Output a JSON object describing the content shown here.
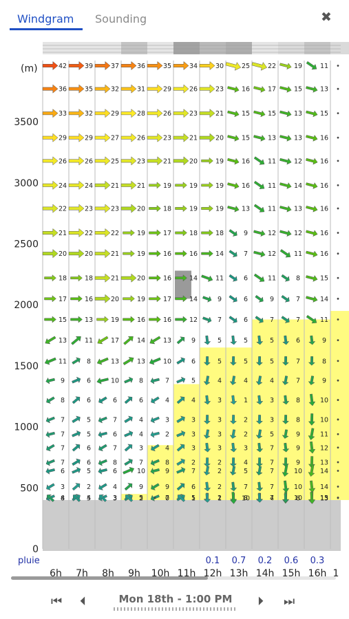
{
  "tabs": {
    "windgram": "Windgram",
    "sounding": "Sounding"
  },
  "close_icon": "close-icon",
  "nav": {
    "date": "Mon 18th - 1:00 PM",
    "first_icon": "skip-first-icon",
    "prev_icon": "step-back-icon",
    "next_icon": "step-forward-icon",
    "last_icon": "skip-last-icon"
  },
  "chart_data": {
    "type": "windgram",
    "y_unit_label": "(m)",
    "y_ticks": [
      0,
      500,
      1000,
      1500,
      2000,
      2500,
      3000,
      3500
    ],
    "ylim": [
      0,
      3960
    ],
    "hours": [
      "6h",
      "7h",
      "8h",
      "9h",
      "10h",
      "11h",
      "12h",
      "13h",
      "14h",
      "15h",
      "16h",
      "1"
    ],
    "rain_label": "pluie",
    "rain": [
      "",
      "",
      "",
      "",
      "",
      "",
      "0.1",
      "0.7",
      "0.2",
      "0.6",
      "0.3",
      ""
    ],
    "ground_altitude": 400,
    "thermal_tops": [
      null,
      null,
      null,
      450,
      850,
      1350,
      1650,
      1650,
      1880,
      1880,
      1880,
      1950
    ],
    "cloud_cells": [
      {
        "hour": "11h",
        "from_alt": 2050,
        "to_alt": 2280
      }
    ],
    "cloud_bar": [
      0.1,
      0.1,
      0.1,
      0.4,
      0.1,
      0.7,
      0.5,
      0.6,
      0.1,
      0.2,
      0.4,
      0.2
    ],
    "levels": [
      3960,
      3770,
      3570,
      3370,
      3180,
      2980,
      2790,
      2590,
      2420,
      2220,
      2050,
      1880,
      1710,
      1540,
      1380,
      1220,
      1060,
      940,
      830,
      710,
      640,
      510,
      420
    ],
    "speeds": [
      [
        42,
        39,
        37,
        36,
        35,
        34,
        30,
        25,
        22,
        19,
        11,
        0
      ],
      [
        36,
        35,
        32,
        31,
        29,
        26,
        23,
        16,
        17,
        15,
        13,
        0
      ],
      [
        33,
        32,
        29,
        28,
        26,
        23,
        21,
        15,
        15,
        13,
        15,
        0
      ],
      [
        29,
        29,
        27,
        26,
        23,
        21,
        20,
        15,
        13,
        13,
        16,
        0
      ],
      [
        26,
        26,
        25,
        23,
        21,
        20,
        19,
        16,
        11,
        12,
        16,
        0
      ],
      [
        24,
        24,
        21,
        21,
        19,
        19,
        19,
        16,
        11,
        14,
        16,
        0
      ],
      [
        22,
        23,
        23,
        20,
        18,
        19,
        19,
        13,
        11,
        13,
        16,
        0
      ],
      [
        21,
        22,
        22,
        19,
        17,
        18,
        18,
        9,
        12,
        12,
        16,
        0
      ],
      [
        20,
        20,
        21,
        19,
        16,
        16,
        14,
        7,
        12,
        11,
        16,
        0
      ],
      [
        18,
        18,
        21,
        20,
        16,
        14,
        11,
        6,
        11,
        8,
        15,
        0
      ],
      [
        17,
        16,
        20,
        19,
        17,
        14,
        9,
        6,
        9,
        7,
        14,
        0
      ],
      [
        15,
        13,
        19,
        16,
        16,
        12,
        7,
        6,
        7,
        7,
        11,
        0
      ],
      [
        13,
        11,
        17,
        14,
        13,
        9,
        5,
        5,
        5,
        6,
        9,
        0
      ],
      [
        11,
        8,
        13,
        13,
        10,
        6,
        5,
        5,
        5,
        7,
        8,
        0
      ],
      [
        9,
        6,
        10,
        8,
        7,
        5,
        4,
        4,
        4,
        7,
        9,
        0
      ],
      [
        8,
        6,
        6,
        6,
        4,
        4,
        3,
        1,
        3,
        8,
        10,
        0
      ],
      [
        7,
        5,
        7,
        4,
        3,
        3,
        3,
        2,
        3,
        8,
        10,
        0
      ],
      [
        7,
        5,
        6,
        4,
        2,
        3,
        3,
        2,
        5,
        9,
        11,
        0
      ],
      [
        7,
        6,
        7,
        3,
        4,
        3,
        3,
        3,
        7,
        9,
        12,
        0
      ],
      [
        7,
        6,
        8,
        7,
        8,
        2,
        2,
        4,
        7,
        9,
        13,
        0
      ],
      [
        6,
        5,
        6,
        10,
        9,
        7,
        2,
        5,
        7,
        10,
        14,
        0
      ],
      [
        3,
        2,
        4,
        9,
        9,
        6,
        2,
        7,
        7,
        10,
        14,
        0
      ],
      [
        4,
        4,
        3,
        5,
        7,
        5,
        2,
        8,
        7,
        10,
        15,
        0
      ]
    ],
    "bottom_row": [
      8,
      5,
      3,
      2,
      0,
      1,
      1,
      10,
      4,
      8,
      13,
      0
    ]
  }
}
